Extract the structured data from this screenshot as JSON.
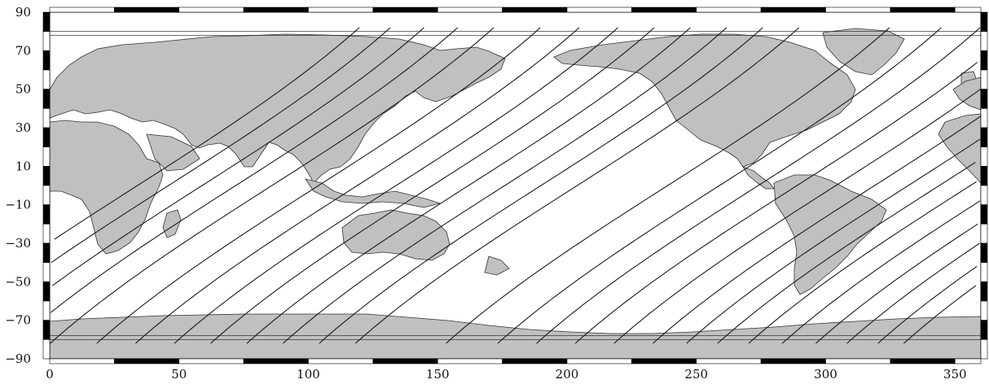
{
  "map": {
    "projection": "equirectangular",
    "lon_range": [
      0,
      360
    ],
    "lat_range": [
      -90,
      90
    ],
    "land_color": "#c0c0c0",
    "ocean_color": "#ffffff",
    "track_color": "#1a1a1a",
    "frame_pattern": "alternating black/white checkered border"
  },
  "axes": {
    "x_ticks": [
      "0",
      "50",
      "100",
      "150",
      "200",
      "250",
      "300",
      "350"
    ],
    "y_ticks": [
      "90",
      "70",
      "50",
      "30",
      "10",
      "−10",
      "−30",
      "−50",
      "−70",
      "−90"
    ]
  }
}
